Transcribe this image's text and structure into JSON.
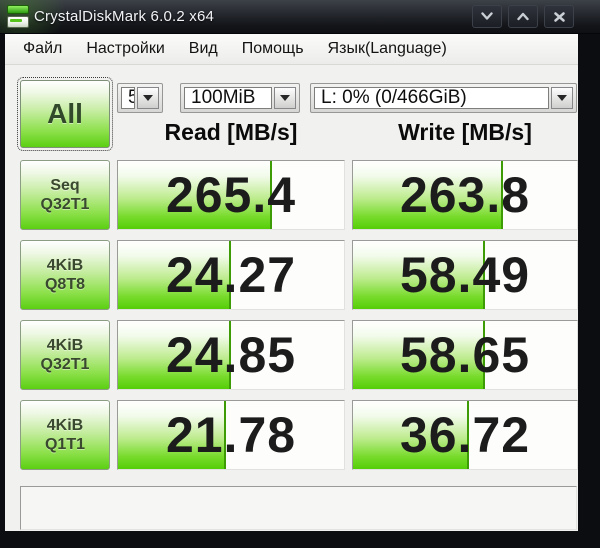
{
  "window": {
    "title": "CrystalDiskMark 6.0.2 x64",
    "controls": {
      "minimize": "minimize",
      "maximize": "maximize",
      "close": "close"
    }
  },
  "menu": {
    "items": [
      "Файл",
      "Настройки",
      "Вид",
      "Помощь",
      "Язык(Language)"
    ]
  },
  "toolbar": {
    "all_label": "All",
    "test_count_value": "5",
    "test_size_value": "100MiB",
    "drive_value": "L: 0% (0/466GiB)"
  },
  "headers": {
    "read": "Read [MB/s]",
    "write": "Write [MB/s]"
  },
  "results": {
    "rows": [
      {
        "label": [
          "Seq",
          "Q32T1"
        ],
        "read": "265.4",
        "write": "263.8",
        "read_fill_pct": 68,
        "write_fill_pct": 67
      },
      {
        "label": [
          "4KiB",
          "Q8T8"
        ],
        "read": "24.27",
        "write": "58.49",
        "read_fill_pct": 50,
        "write_fill_pct": 59
      },
      {
        "label": [
          "4KiB",
          "Q32T1"
        ],
        "read": "24.85",
        "write": "58.65",
        "read_fill_pct": 50,
        "write_fill_pct": 59
      },
      {
        "label": [
          "4KiB",
          "Q1T1"
        ],
        "read": "21.78",
        "write": "36.72",
        "read_fill_pct": 48,
        "write_fill_pct": 52
      }
    ]
  },
  "status_text": "",
  "colors": {
    "accent_green": "#55ce08",
    "fill_edge_green": "#3d9b05",
    "titlebar_dark": "#1a1d22",
    "menubar_bg": "#f0f0ee",
    "value_text": "#1c1c1c"
  }
}
